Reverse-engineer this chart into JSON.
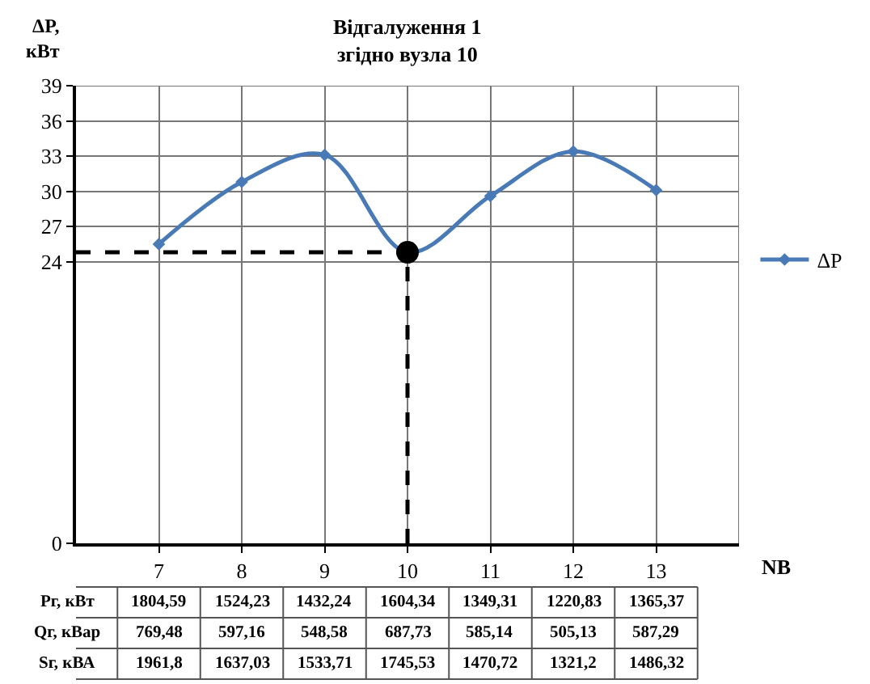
{
  "chart_data": {
    "type": "line",
    "title": "Відгалуження 1\nзгідно вузла 10",
    "xlabel": "NB",
    "ylabel": "ΔP,\nкВт",
    "x": [
      7,
      8,
      9,
      10,
      11,
      12,
      13
    ],
    "series": [
      {
        "name": "ΔP",
        "color": "#4a7ab5",
        "values": [
          25.5,
          30.8,
          33.1,
          24.8,
          29.6,
          33.4,
          30.1
        ],
        "marker": "diamond"
      },
      {
        "type": "scatter",
        "color": "#000000",
        "x": [
          10
        ],
        "values": [
          24.8
        ],
        "marker": "circle"
      }
    ],
    "xlim": [
      6,
      14
    ],
    "xticks": [
      7,
      8,
      9,
      10,
      11,
      12,
      13
    ],
    "ylim": [
      0,
      39
    ],
    "yticks": [
      0,
      24,
      27,
      30,
      33,
      36,
      39
    ],
    "grid": true,
    "legend": "right",
    "ref_lines": [
      {
        "axis": "y",
        "value": 24.8,
        "color": "#000000",
        "line_style": "dashed"
      },
      {
        "axis": "x",
        "value": 10,
        "color": "#000000",
        "line_style": "dashed"
      }
    ],
    "annotations": [
      "Рг, кВт",
      "1804,59",
      "1524,23",
      "1432,24",
      "1604,34",
      "1349,31",
      "1220,83",
      "1365,37",
      "Qг, кВар",
      "769,48",
      "597,16",
      "548,58",
      "687,73",
      "585,14",
      "505,13",
      "587,29",
      "Sг, кВА",
      "1961,8",
      "1637,03",
      "1533,71",
      "1745,53",
      "1470,72",
      "1321,2",
      "1486,32"
    ]
  }
}
